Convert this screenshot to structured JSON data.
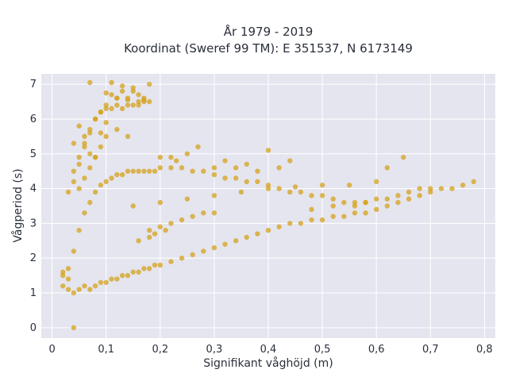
{
  "chart_data": {
    "type": "scatter",
    "title_lines": [
      "År 1979 - 2019",
      "Koordinat (Sweref 99 TM): E 351537, N 6173149"
    ],
    "xlabel": "Signifikant våghöjd (m)",
    "ylabel": "Vågperiod (s)",
    "xlim": [
      -0.02,
      0.82
    ],
    "ylim": [
      -0.3,
      7.3
    ],
    "xticks": [
      0,
      0.1,
      0.2,
      0.3,
      0.4,
      0.5,
      0.6,
      0.7,
      0.8
    ],
    "xtick_labels": [
      "0",
      "0,1",
      "0,2",
      "0,3",
      "0,4",
      "0,5",
      "0,6",
      "0,7",
      "0,8"
    ],
    "yticks": [
      0,
      1,
      2,
      3,
      4,
      5,
      6,
      7
    ],
    "ytick_labels": [
      "0",
      "1",
      "2",
      "3",
      "4",
      "5",
      "6",
      "7"
    ],
    "grid": true,
    "legend": "none",
    "background": "#e5e5ef",
    "marker_color": "#d4a21b",
    "series": [
      {
        "x": [
          0.02,
          0.02,
          0.03,
          0.03,
          0.04,
          0.04,
          0.05,
          0.05,
          0.06,
          0.06,
          0.07,
          0.07,
          0.08,
          0.08,
          0.09,
          0.09,
          0.1,
          0.1,
          0.11,
          0.11,
          0.12,
          0.12,
          0.13,
          0.13,
          0.14,
          0.14,
          0.15,
          0.15,
          0.16,
          0.16,
          0.17,
          0.17,
          0.18,
          0.18,
          0.19,
          0.19,
          0.2,
          0.2,
          0.22,
          0.22,
          0.24,
          0.24,
          0.26,
          0.26,
          0.28,
          0.28,
          0.3,
          0.3,
          0.32,
          0.32,
          0.34,
          0.34,
          0.36,
          0.36,
          0.38,
          0.38,
          0.4,
          0.4,
          0.42,
          0.42,
          0.44,
          0.44,
          0.46,
          0.46,
          0.48,
          0.48,
          0.5,
          0.5,
          0.52,
          0.52,
          0.54,
          0.54,
          0.56,
          0.56,
          0.58,
          0.58,
          0.6,
          0.6,
          0.62,
          0.62,
          0.64,
          0.64,
          0.66,
          0.66,
          0.68,
          0.68,
          0.7,
          0.7,
          0.72,
          0.74,
          0.76,
          0.78,
          0.04,
          0.05,
          0.06,
          0.07,
          0.08,
          0.09,
          0.1,
          0.11,
          0.12,
          0.13,
          0.14,
          0.15,
          0.16,
          0.17,
          0.05,
          0.06,
          0.07,
          0.08,
          0.09,
          0.1,
          0.04,
          0.05,
          0.06,
          0.07,
          0.08,
          0.09,
          0.1,
          0.11,
          0.12,
          0.13,
          0.14,
          0.15,
          0.16,
          0.17,
          0.18,
          0.07,
          0.1,
          0.11,
          0.12,
          0.13,
          0.14,
          0.15,
          0.16,
          0.17,
          0.18,
          0.03,
          0.04,
          0.05,
          0.06,
          0.07,
          0.08,
          0.09,
          0.1,
          0.12,
          0.14,
          0.04,
          0.03,
          0.02,
          0.15,
          0.2,
          0.25,
          0.3,
          0.35,
          0.4,
          0.45,
          0.5,
          0.55,
          0.6,
          0.62,
          0.65,
          0.48,
          0.52,
          0.56,
          0.58,
          0.25,
          0.27,
          0.22,
          0.23,
          0.2,
          0.3,
          0.32,
          0.34,
          0.36,
          0.38,
          0.4,
          0.42,
          0.44,
          0.18,
          0.2,
          0.22,
          0.24,
          0.26,
          0.28,
          0.3,
          0.16,
          0.18,
          0.19,
          0.21
        ],
        "y": [
          1.6,
          1.2,
          1.7,
          1.1,
          2.2,
          1.0,
          2.8,
          1.1,
          3.3,
          1.2,
          3.6,
          1.1,
          3.9,
          1.2,
          4.1,
          1.3,
          4.2,
          1.3,
          4.3,
          1.4,
          4.4,
          1.4,
          4.4,
          1.5,
          4.5,
          1.5,
          4.5,
          1.6,
          4.5,
          1.6,
          4.5,
          1.7,
          4.5,
          1.7,
          4.5,
          1.8,
          4.6,
          1.8,
          4.6,
          1.9,
          4.6,
          2.0,
          4.5,
          2.1,
          4.5,
          2.2,
          4.4,
          2.3,
          4.3,
          2.4,
          4.3,
          2.5,
          4.2,
          2.6,
          4.2,
          2.7,
          4.1,
          2.8,
          4.0,
          2.9,
          3.9,
          3.0,
          3.9,
          3.0,
          3.8,
          3.1,
          3.8,
          3.1,
          3.7,
          3.2,
          3.6,
          3.2,
          3.6,
          3.3,
          3.6,
          3.3,
          3.7,
          3.4,
          3.7,
          3.5,
          3.8,
          3.6,
          3.9,
          3.7,
          4.0,
          3.8,
          4.0,
          3.9,
          4.0,
          4.0,
          4.1,
          4.2,
          4.2,
          4.7,
          5.2,
          5.6,
          6.0,
          6.2,
          6.3,
          6.3,
          6.4,
          6.3,
          6.4,
          6.4,
          6.5,
          6.5,
          4.0,
          4.3,
          4.6,
          4.9,
          5.2,
          5.5,
          4.5,
          4.9,
          5.3,
          5.7,
          6.0,
          6.2,
          6.4,
          6.7,
          6.6,
          6.8,
          6.6,
          6.9,
          6.7,
          6.6,
          7.0,
          7.05,
          6.75,
          7.05,
          6.6,
          6.95,
          6.55,
          6.8,
          6.4,
          6.55,
          6.5,
          3.9,
          5.3,
          5.8,
          5.5,
          5.0,
          4.9,
          5.6,
          5.9,
          5.7,
          5.5,
          0.0,
          1.4,
          1.5,
          3.5,
          3.6,
          3.7,
          3.8,
          3.9,
          4.0,
          4.05,
          4.1,
          4.1,
          4.2,
          4.6,
          4.9,
          3.4,
          3.5,
          3.5,
          3.6,
          5.0,
          5.2,
          4.9,
          4.8,
          4.9,
          4.6,
          4.8,
          4.6,
          4.7,
          4.5,
          5.1,
          4.6,
          4.8,
          2.8,
          2.9,
          3.0,
          3.1,
          3.2,
          3.3,
          3.3,
          2.5,
          2.6,
          2.7,
          2.8
        ]
      }
    ]
  }
}
